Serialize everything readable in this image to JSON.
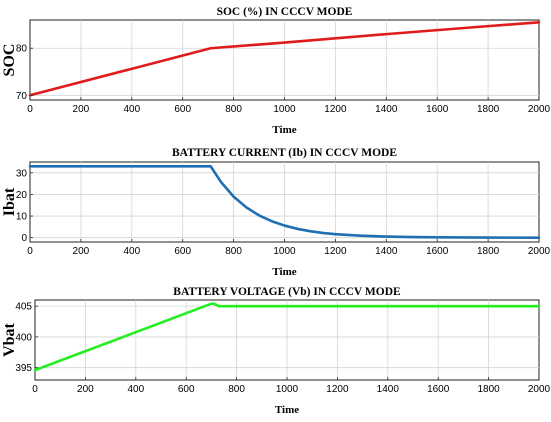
{
  "chart_data": [
    {
      "type": "line",
      "title": "SOC (%) IN CCCV MODE",
      "xlabel": "Time",
      "ylabel": "SOC",
      "xlim": [
        0,
        2000
      ],
      "ylim": [
        69,
        86
      ],
      "xticks": [
        0,
        200,
        400,
        600,
        800,
        1000,
        1200,
        1400,
        1600,
        1800,
        2000
      ],
      "yticks": [
        70,
        80
      ],
      "grid": true,
      "series": [
        {
          "color": "#e01b1b",
          "x": [
            0,
            710,
            1000,
            1400,
            1800,
            2000
          ],
          "y": [
            70.0,
            80.0,
            81.2,
            83.0,
            84.7,
            85.5
          ]
        }
      ]
    },
    {
      "type": "line",
      "title": "BATTERY CURRENT (Ib) IN CCCV MODE",
      "xlabel": "Time",
      "ylabel": "Ibat",
      "xlim": [
        0,
        2000
      ],
      "ylim": [
        -2,
        35
      ],
      "xticks": [
        0,
        200,
        400,
        600,
        800,
        1000,
        1200,
        1400,
        1600,
        1800,
        2000
      ],
      "yticks": [
        0,
        10,
        20,
        30
      ],
      "grid": true,
      "series": [
        {
          "color": "#1f6fb4",
          "x": [
            0,
            700,
            710,
            750,
            800,
            850,
            900,
            950,
            1000,
            1050,
            1100,
            1150,
            1200,
            1300,
            1400,
            1500,
            1600,
            1800,
            2000
          ],
          "y": [
            33,
            33,
            33,
            25.8,
            19.0,
            14.0,
            10.3,
            7.6,
            5.6,
            4.1,
            3.0,
            2.2,
            1.6,
            0.9,
            0.5,
            0.3,
            0.15,
            0.05,
            0.0
          ]
        }
      ]
    },
    {
      "type": "line",
      "title": "BATTERY VOLTAGE (Vb) IN CCCV  MODE",
      "xlabel": "Time",
      "ylabel": "Vbat",
      "xlim": [
        0,
        2000
      ],
      "ylim": [
        393,
        406
      ],
      "xticks": [
        0,
        200,
        400,
        600,
        800,
        1000,
        1200,
        1400,
        1600,
        1800,
        2000
      ],
      "yticks": [
        395,
        400,
        405
      ],
      "grid": true,
      "series": [
        {
          "color": "#22ee22",
          "x": [
            0,
            700,
            710,
            730,
            2000
          ],
          "y": [
            394.6,
            405.4,
            405.4,
            405.0,
            405.0
          ]
        }
      ]
    }
  ]
}
